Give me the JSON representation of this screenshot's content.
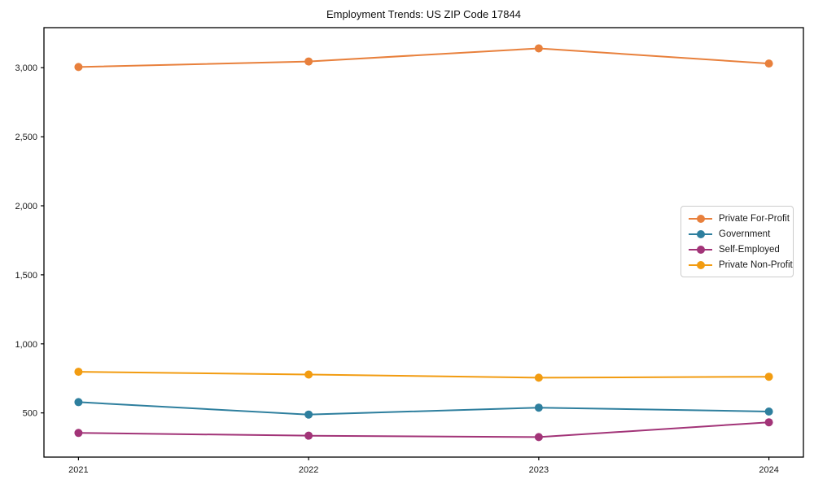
{
  "chart_data": {
    "type": "line",
    "title": "Employment Trends: US ZIP Code 17844",
    "xlabel": "",
    "ylabel": "",
    "x": [
      2021,
      2022,
      2023,
      2024
    ],
    "x_tick_labels": [
      "2021",
      "2022",
      "2023",
      "2024"
    ],
    "y_ticks": [
      500,
      1000,
      1500,
      2000,
      2500,
      3000
    ],
    "y_tick_labels": [
      "500",
      "1,000",
      "1,500",
      "2,000",
      "2,500",
      "3,000"
    ],
    "xlim": [
      2020.85,
      2024.15
    ],
    "ylim": [
      180,
      3290
    ],
    "grid": false,
    "legend_position": "center right",
    "marker": "circle",
    "series": [
      {
        "name": "Private For-Profit",
        "color": "#e8803c",
        "values": [
          3005,
          3045,
          3140,
          3030
        ]
      },
      {
        "name": "Government",
        "color": "#2e7f9e",
        "values": [
          578,
          488,
          538,
          510
        ]
      },
      {
        "name": "Self-Employed",
        "color": "#a23478",
        "values": [
          355,
          335,
          325,
          432
        ]
      },
      {
        "name": "Private Non-Profit",
        "color": "#f29c11",
        "values": [
          798,
          778,
          755,
          762
        ]
      }
    ],
    "frame_color": "#000000",
    "tick_color": "#000000",
    "text_color": "#1a1a1a",
    "legend_border_color": "#cccccc",
    "background_color": "#ffffff"
  }
}
